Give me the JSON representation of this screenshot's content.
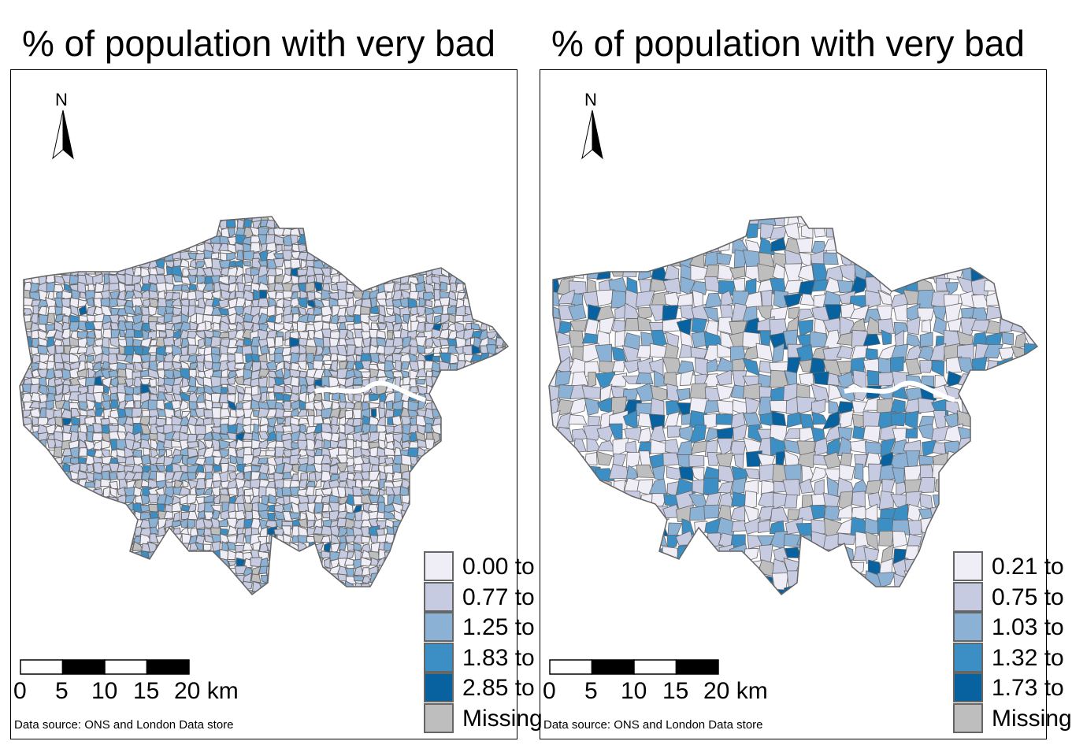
{
  "colors": [
    "#efedf5",
    "#c6cbe2",
    "#8bb1d5",
    "#3b8fc4",
    "#08629f",
    "#bebebe"
  ],
  "maps": [
    {
      "title": "% of population with very bad",
      "north": "N",
      "scale_labels": [
        "0",
        "5",
        "10",
        "15",
        "20 km"
      ],
      "source": "Data source: ONS and London Data store",
      "legend": [
        "0.00 to",
        "0.77 to",
        "1.25 to",
        "1.83 to",
        "2.85 to",
        "Missing"
      ],
      "weights": [
        0.3,
        0.38,
        0.22,
        0.05,
        0.01,
        0.04
      ]
    },
    {
      "title": "% of population with very bad",
      "north": "N",
      "scale_labels": [
        "0",
        "5",
        "10",
        "15",
        "20 km"
      ],
      "source": "Data source: ONS and London Data store",
      "legend": [
        "0.21 to",
        "0.75 to",
        "1.03 to",
        "1.32 to",
        "1.73 to",
        "Missing"
      ],
      "weights": [
        0.2,
        0.3,
        0.2,
        0.13,
        0.05,
        0.12
      ]
    }
  ]
}
